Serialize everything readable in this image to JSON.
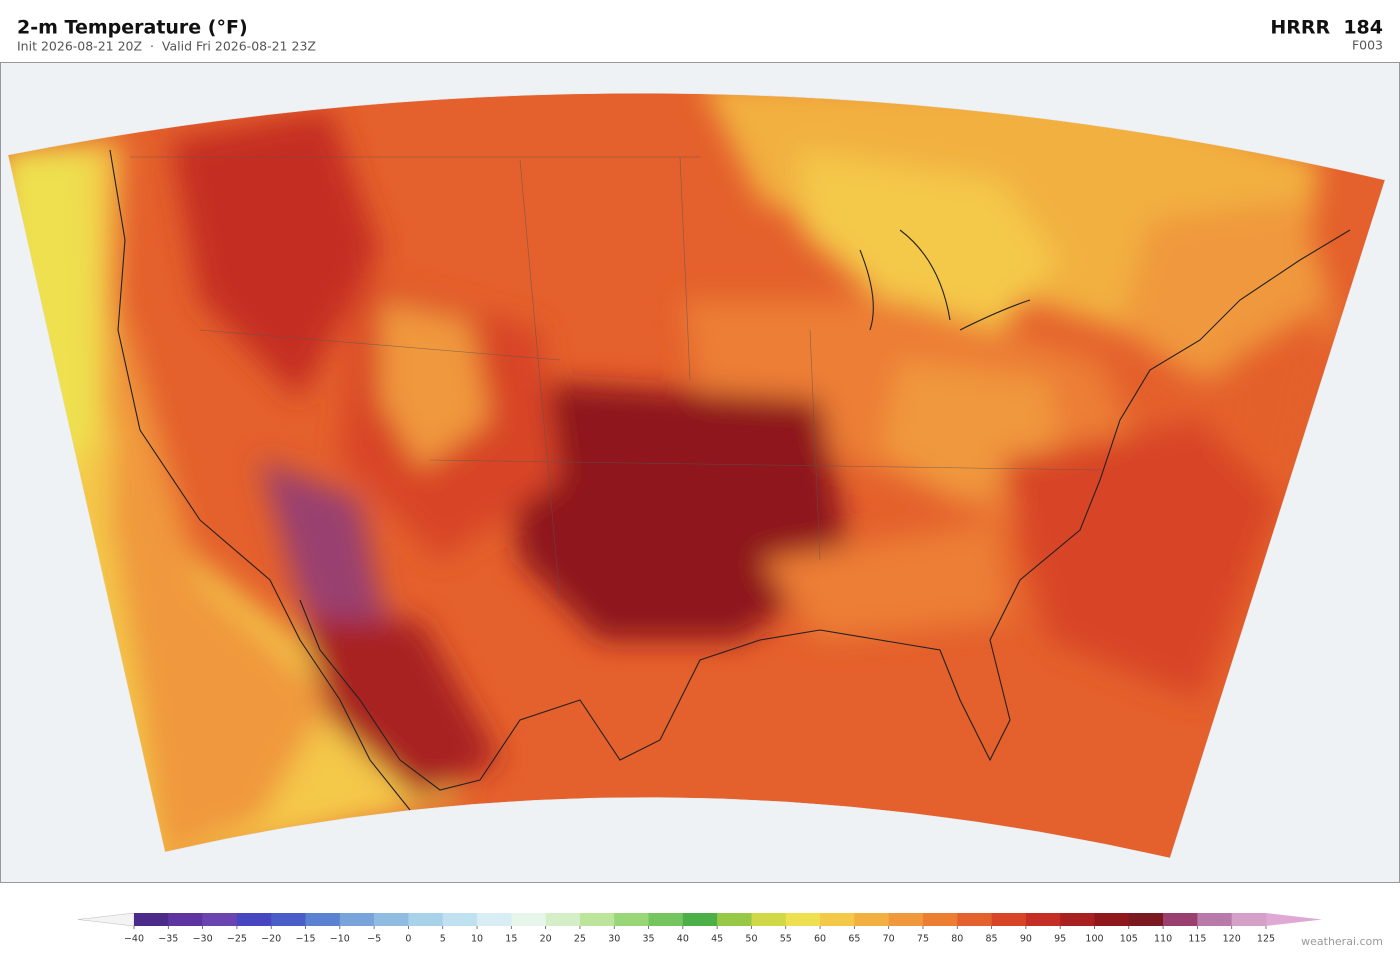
{
  "header": {
    "title": "2-m Temperature  (°F)",
    "subtitle": "Init 2026-08-21 20Z  ·  Valid Fri 2026-08-21 23Z",
    "model": "HRRR  184",
    "forecast_hour": "F003"
  },
  "colorbar": {
    "ticks": [
      {
        "value": -40,
        "label": "−40"
      },
      {
        "value": -35,
        "label": "−35"
      },
      {
        "value": -30,
        "label": "−30"
      },
      {
        "value": -25,
        "label": "−25"
      },
      {
        "value": -20,
        "label": "−20"
      },
      {
        "value": -15,
        "label": "−15"
      },
      {
        "value": -10,
        "label": "−10"
      },
      {
        "value": -5,
        "label": "−5"
      },
      0,
      5,
      10,
      15,
      20,
      25,
      30,
      35,
      40,
      45,
      50,
      55,
      60,
      65,
      70,
      75,
      80,
      85,
      90,
      95,
      100,
      105,
      110,
      115,
      120,
      125
    ],
    "colors": [
      "#4b2a8a",
      "#5e35a0",
      "#6a45b0",
      "#4546c0",
      "#4a5ec8",
      "#5a82d0",
      "#78a4da",
      "#90bce2",
      "#a8d2ea",
      "#c0e2f0",
      "#d8eef4",
      "#e6f6ea",
      "#d4eec8",
      "#bce49a",
      "#98d678",
      "#74c460",
      "#4caf48",
      "#98c848",
      "#d0d848",
      "#eee050",
      "#f4c848",
      "#f2b040",
      "#f0983c",
      "#ec7e34",
      "#e4602c",
      "#d84428",
      "#c42e24",
      "#a82020",
      "#8e181c",
      "#7a1a20",
      "#9a4070",
      "#b87aaa",
      "#d4a0c8"
    ],
    "under_color": "#f4f4f4",
    "over_color": "#e0a8d4"
  },
  "credit": "weatherai.com"
}
